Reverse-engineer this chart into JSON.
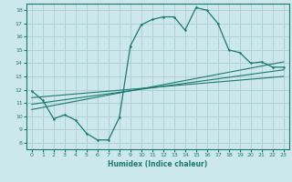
{
  "xlabel": "Humidex (Indice chaleur)",
  "ylabel": "",
  "bg_color": "#cce8ec",
  "grid_color": "#b0d0d5",
  "line_color": "#1a7a6e",
  "xlim": [
    -0.5,
    23.5
  ],
  "ylim": [
    7.5,
    18.5
  ],
  "yticks": [
    8,
    9,
    10,
    11,
    12,
    13,
    14,
    15,
    16,
    17,
    18
  ],
  "xticks": [
    0,
    1,
    2,
    3,
    4,
    5,
    6,
    7,
    8,
    9,
    10,
    11,
    12,
    13,
    14,
    15,
    16,
    17,
    18,
    19,
    20,
    21,
    22,
    23
  ],
  "series1_x": [
    0,
    1,
    2,
    3,
    4,
    5,
    6,
    7,
    8,
    9,
    10,
    11,
    12,
    13,
    14,
    15,
    16,
    17,
    18,
    19,
    20,
    21,
    22,
    23
  ],
  "series1_y": [
    11.9,
    11.2,
    9.8,
    10.1,
    9.7,
    8.7,
    8.2,
    8.2,
    9.9,
    15.3,
    16.9,
    17.3,
    17.5,
    17.5,
    16.5,
    18.2,
    18.0,
    17.0,
    15.0,
    14.8,
    14.0,
    14.1,
    13.7,
    13.7
  ],
  "series2_x": [
    0,
    23
  ],
  "series2_y": [
    10.5,
    14.1
  ],
  "series3_x": [
    0,
    23
  ],
  "series3_y": [
    10.9,
    13.5
  ],
  "series4_x": [
    0,
    23
  ],
  "series4_y": [
    11.4,
    13.0
  ]
}
